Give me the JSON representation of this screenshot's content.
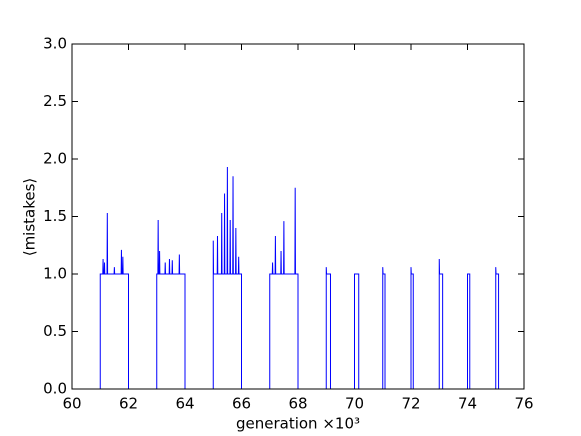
{
  "chart_data": {
    "type": "line",
    "xlabel": "generation ×10³",
    "ylabel": "⟨mistakes⟩",
    "xlim": [
      60,
      76
    ],
    "xticks": [
      60,
      62,
      64,
      66,
      68,
      70,
      72,
      74,
      76
    ],
    "ylim": [
      0,
      3
    ],
    "yticks": [
      {
        "value": 0,
        "label": "0.0"
      },
      {
        "value": 0.5,
        "label": "0.5"
      },
      {
        "value": 1,
        "label": "1.0"
      },
      {
        "value": 1.5,
        "label": "1.5"
      },
      {
        "value": 2,
        "label": "2.0"
      },
      {
        "value": 2.5,
        "label": "2.5"
      },
      {
        "value": 3,
        "label": "3.0"
      }
    ],
    "color": "#0000ff",
    "x": [
      60,
      61,
      61,
      61.09,
      61.1,
      61.11,
      61.14,
      61.15,
      61.16,
      61.24,
      61.25,
      61.26,
      61.49,
      61.5,
      61.51,
      61.74,
      61.75,
      61.76,
      61.79,
      61.8,
      61.81,
      62,
      62,
      63,
      63,
      63.04,
      63.05,
      63.06,
      63.09,
      63.1,
      63.11,
      63.29,
      63.3,
      63.31,
      63.44,
      63.45,
      63.46,
      63.54,
      63.55,
      63.56,
      63.79,
      63.8,
      63.81,
      64,
      64,
      65,
      65,
      65.01,
      65.14,
      65.15,
      65.16,
      65.29,
      65.3,
      65.31,
      65.39,
      65.4,
      65.41,
      65.49,
      65.5,
      65.51,
      65.59,
      65.6,
      65.61,
      65.69,
      65.7,
      65.71,
      65.79,
      65.8,
      65.81,
      65.89,
      65.9,
      65.91,
      66,
      66,
      67,
      67,
      67.09,
      67.1,
      67.11,
      67.19,
      67.2,
      67.21,
      67.39,
      67.4,
      67.41,
      67.49,
      67.5,
      67.51,
      67.89,
      67.9,
      67.91,
      68,
      68,
      69,
      69,
      69.01,
      69.15,
      69.15,
      70,
      70,
      70.01,
      70.15,
      70.15,
      71,
      71,
      71.01,
      71.08,
      71.08,
      72,
      72,
      72.01,
      72.08,
      72.08,
      73,
      73,
      73.01,
      73.12,
      73.12,
      74,
      74,
      74.01,
      74.08,
      74.08,
      75,
      75,
      75.01,
      75.1,
      75.1,
      76
    ],
    "values": [
      0,
      0,
      1,
      1,
      1.13,
      1,
      1,
      1.1,
      1,
      1,
      1.53,
      1,
      1,
      1.06,
      1,
      1,
      1.21,
      1,
      1,
      1.15,
      1,
      1,
      0,
      0,
      1,
      1,
      1.47,
      1,
      1,
      1.2,
      1,
      1,
      1.1,
      1,
      1,
      1.13,
      1,
      1,
      1.12,
      1,
      1,
      1.17,
      1,
      1,
      0,
      0,
      1.29,
      1,
      1,
      1.33,
      1,
      1,
      1.53,
      1,
      1,
      1.7,
      1,
      1,
      1.93,
      1,
      1,
      1.47,
      1,
      1,
      1.85,
      1,
      1,
      1.4,
      1,
      1,
      1.15,
      1,
      1,
      0,
      0,
      1,
      1,
      1.1,
      1,
      1,
      1.33,
      1,
      1,
      1.2,
      1,
      1,
      1.46,
      1,
      1,
      1.75,
      1,
      1,
      0,
      0,
      1.06,
      1,
      1,
      0,
      0,
      1,
      1,
      1,
      0,
      0,
      1.06,
      1,
      1,
      0,
      0,
      1.06,
      1,
      1,
      0,
      0,
      1.13,
      1,
      1,
      0,
      0,
      1,
      1,
      1,
      0,
      0,
      1.06,
      1,
      1,
      0,
      0
    ]
  }
}
